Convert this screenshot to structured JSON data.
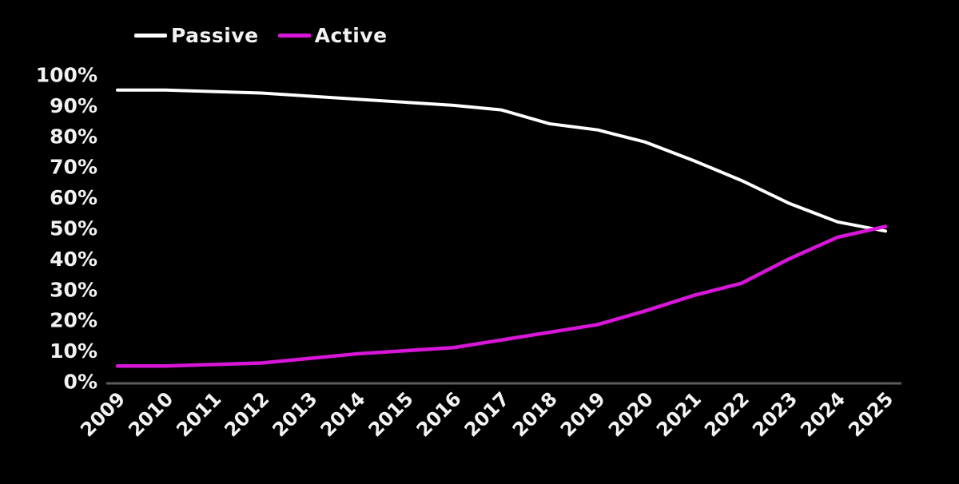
{
  "chart_data": {
    "type": "line",
    "title": "",
    "xlabel": "",
    "ylabel": "",
    "background_color": "#000000",
    "axis_color": "#5c5c5c",
    "tick_label_color": "#f2f2f2",
    "grid": false,
    "legend_position": "top-left",
    "ylim": [
      0,
      100
    ],
    "x_tick_labels": [
      "2009",
      "2010",
      "2011",
      "2012",
      "2013",
      "2014",
      "2015",
      "2016",
      "2017",
      "2018",
      "2019",
      "2020",
      "2021",
      "2022",
      "2023",
      "2024",
      "2025"
    ],
    "y_ticks": [
      {
        "value": 0,
        "label": "0%"
      },
      {
        "value": 10,
        "label": "10%"
      },
      {
        "value": 20,
        "label": "20%"
      },
      {
        "value": 30,
        "label": "30%"
      },
      {
        "value": 40,
        "label": "40%"
      },
      {
        "value": 50,
        "label": "50%"
      },
      {
        "value": 60,
        "label": "60%"
      },
      {
        "value": 70,
        "label": "70%"
      },
      {
        "value": 80,
        "label": "80%"
      },
      {
        "value": 90,
        "label": "90%"
      },
      {
        "value": 100,
        "label": "100%"
      }
    ],
    "series": [
      {
        "key": "passive",
        "name": "Passive",
        "color": "#ffffff",
        "values": [
          95,
          95,
          94.5,
          94,
          93,
          92,
          91,
          90,
          88.5,
          84,
          82,
          78,
          72,
          65.5,
          58,
          52,
          49
        ]
      },
      {
        "key": "active",
        "name": "Active",
        "color": "#d816d8",
        "values": [
          5,
          5,
          5.5,
          6,
          7.5,
          9,
          10,
          11,
          13.5,
          16,
          18.5,
          23,
          28,
          32,
          40,
          47,
          50.5
        ]
      }
    ]
  }
}
